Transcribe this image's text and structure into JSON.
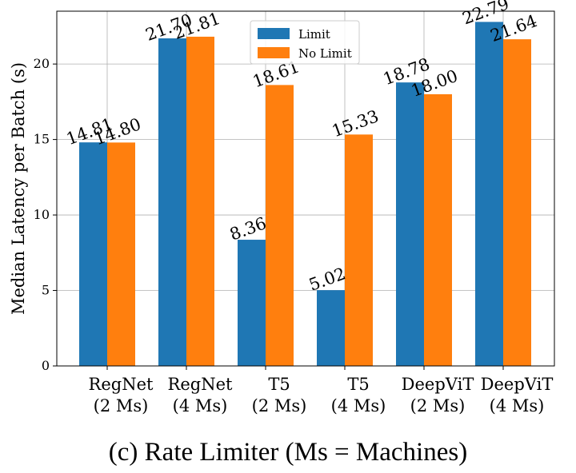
{
  "chart_data": {
    "type": "bar",
    "categories": [
      "RegNet\n(2 Ms)",
      "RegNet\n(4 Ms)",
      "T5\n(2 Ms)",
      "T5\n(4 Ms)",
      "DeepViT\n(2 Ms)",
      "DeepViT\n(4 Ms)"
    ],
    "series": [
      {
        "name": "Limit",
        "color": "#1f77b4",
        "values": [
          14.81,
          21.7,
          8.36,
          5.02,
          18.78,
          22.79
        ]
      },
      {
        "name": "No Limit",
        "color": "#ff7f0e",
        "values": [
          14.8,
          21.81,
          18.61,
          15.33,
          18.0,
          21.64
        ]
      }
    ],
    "ylabel": "Median Latency per Batch (s)",
    "xlabel": "",
    "ylim": [
      0,
      23.5
    ],
    "yticks": [
      0,
      5,
      10,
      15,
      20
    ],
    "grid": true,
    "legend_position": "top-center",
    "data_labels": true
  },
  "caption": "(c) Rate Limiter (Ms = Machines)"
}
